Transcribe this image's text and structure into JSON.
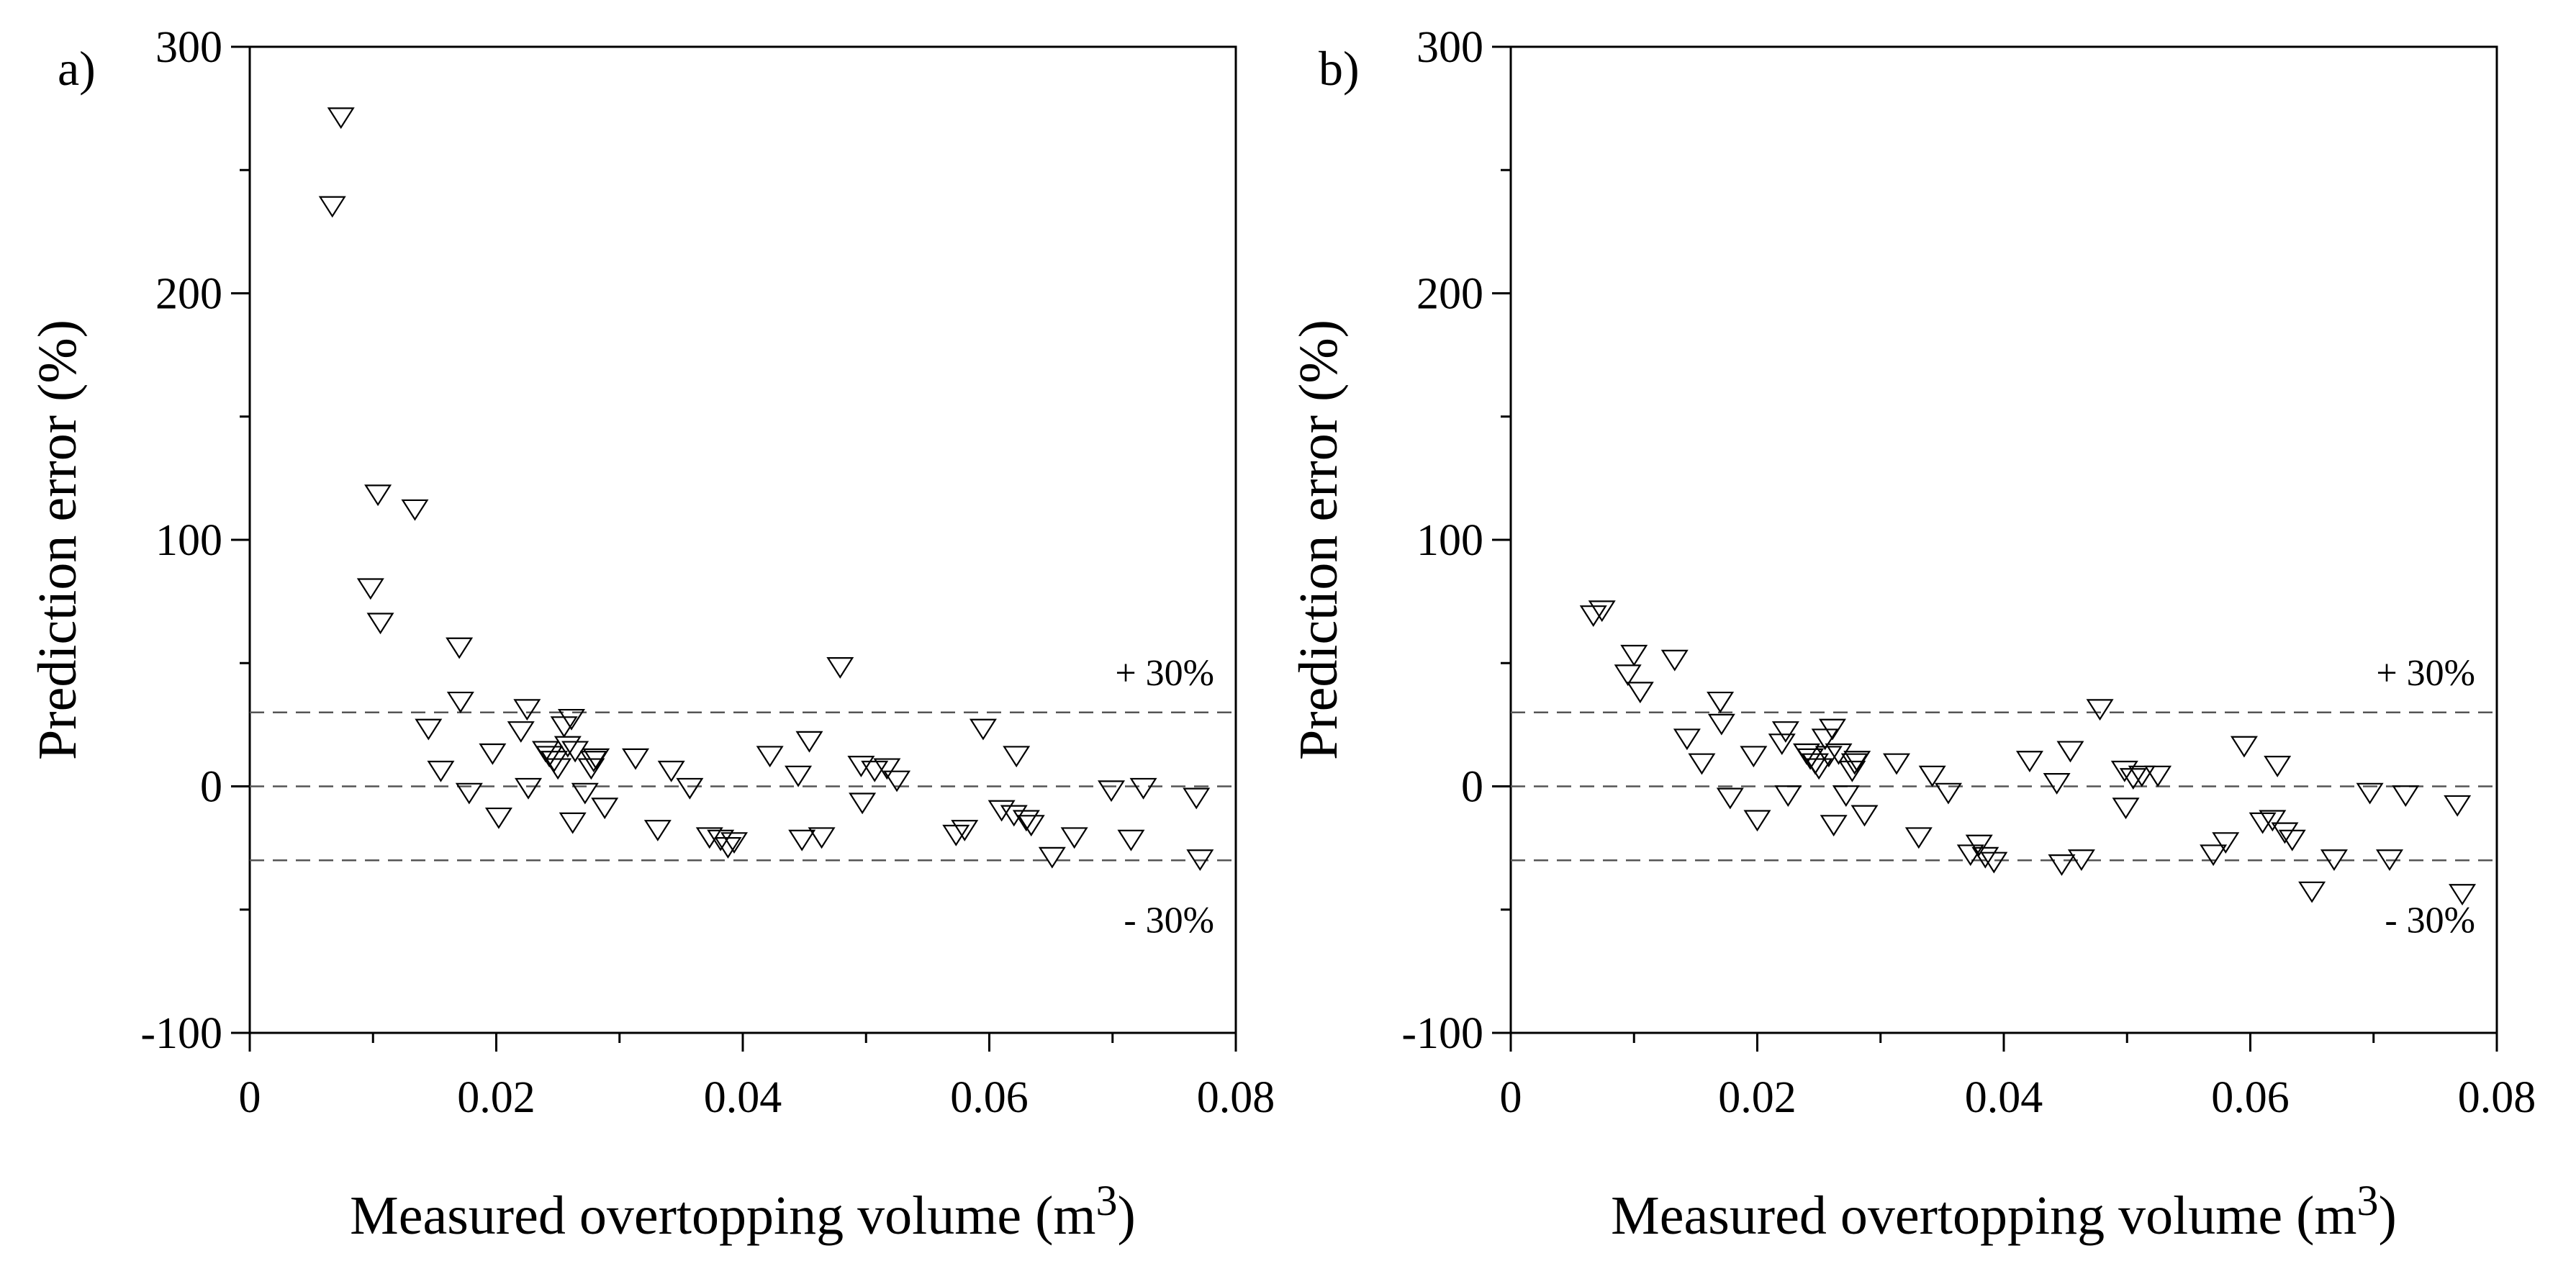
{
  "chart_data": [
    {
      "type": "scatter",
      "panel_label": "a)",
      "xlabel": "Measured overtopping volume (m",
      "xlabel_sup": "3",
      "xlabel_close": ")",
      "ylabel": "Prediction error (%)",
      "xlim": [
        0,
        0.08
      ],
      "ylim": [
        -100,
        300
      ],
      "xticks": [
        0,
        0.02,
        0.04,
        0.06,
        0.08
      ],
      "xtick_labels": [
        "0",
        "0.02",
        "0.04",
        "0.06",
        "0.08"
      ],
      "yticks": [
        -100,
        0,
        100,
        200,
        300
      ],
      "ytick_labels": [
        "-100",
        "0",
        "100",
        "200",
        "300"
      ],
      "reference_lines": [
        {
          "y": 30,
          "label": "+ 30%"
        },
        {
          "y": 0,
          "label": ""
        },
        {
          "y": -30,
          "label": "- 30%"
        }
      ],
      "marker": "triangle-down-open",
      "series": [
        {
          "name": "a",
          "points": [
            [
              0.0067,
              236
            ],
            [
              0.0074,
              272
            ],
            [
              0.0098,
              81
            ],
            [
              0.0104,
              119
            ],
            [
              0.0106,
              67
            ],
            [
              0.0134,
              113
            ],
            [
              0.0145,
              24
            ],
            [
              0.0155,
              7
            ],
            [
              0.017,
              57
            ],
            [
              0.0171,
              35
            ],
            [
              0.0178,
              -2
            ],
            [
              0.0197,
              14
            ],
            [
              0.0202,
              -12
            ],
            [
              0.022,
              23
            ],
            [
              0.0225,
              32
            ],
            [
              0.0226,
              0
            ],
            [
              0.024,
              15
            ],
            [
              0.0243,
              13
            ],
            [
              0.0247,
              11
            ],
            [
              0.025,
              8
            ],
            [
              0.0255,
              25
            ],
            [
              0.0258,
              17
            ],
            [
              0.0261,
              28
            ],
            [
              0.0262,
              -14
            ],
            [
              0.0264,
              15
            ],
            [
              0.0272,
              -2
            ],
            [
              0.0277,
              8
            ],
            [
              0.0279,
              11
            ],
            [
              0.0281,
              12
            ],
            [
              0.0288,
              -8
            ],
            [
              0.0313,
              12
            ],
            [
              0.0331,
              -17
            ],
            [
              0.0342,
              7
            ],
            [
              0.0357,
              0
            ],
            [
              0.0373,
              -20
            ],
            [
              0.0382,
              -21
            ],
            [
              0.0388,
              -24
            ],
            [
              0.0393,
              -22
            ],
            [
              0.0422,
              13
            ],
            [
              0.0445,
              5
            ],
            [
              0.0448,
              -21
            ],
            [
              0.0454,
              19
            ],
            [
              0.0464,
              -20
            ],
            [
              0.0479,
              49
            ],
            [
              0.0496,
              9
            ],
            [
              0.0497,
              -6
            ],
            [
              0.0507,
              7
            ],
            [
              0.0517,
              8
            ],
            [
              0.0525,
              3
            ],
            [
              0.0573,
              -19
            ],
            [
              0.058,
              -17
            ],
            [
              0.0595,
              24
            ],
            [
              0.061,
              -9
            ],
            [
              0.062,
              -11
            ],
            [
              0.0622,
              13
            ],
            [
              0.063,
              -13
            ],
            [
              0.0634,
              -15
            ],
            [
              0.0651,
              -28
            ],
            [
              0.0669,
              -20
            ],
            [
              0.0699,
              -1
            ],
            [
              0.0715,
              -21
            ],
            [
              0.0725,
              0
            ],
            [
              0.0768,
              -4
            ],
            [
              0.0771,
              -29
            ]
          ]
        }
      ]
    },
    {
      "type": "scatter",
      "panel_label": "b)",
      "xlabel": "Measured overtopping volume (m",
      "xlabel_sup": "3",
      "xlabel_close": ")",
      "ylabel": "Prediction error (%)",
      "xlim": [
        0,
        0.08
      ],
      "ylim": [
        -100,
        300
      ],
      "xticks": [
        0,
        0.02,
        0.04,
        0.06,
        0.08
      ],
      "xtick_labels": [
        "0",
        "0.02",
        "0.04",
        "0.06",
        "0.08"
      ],
      "yticks": [
        -100,
        0,
        100,
        200,
        300
      ],
      "ytick_labels": [
        "-100",
        "0",
        "100",
        "200",
        "300"
      ],
      "reference_lines": [
        {
          "y": 30,
          "label": "+ 30%"
        },
        {
          "y": 0,
          "label": ""
        },
        {
          "y": -30,
          "label": "- 30%"
        }
      ],
      "marker": "triangle-down-open",
      "series": [
        {
          "name": "b",
          "points": [
            [
              0.0067,
              70
            ],
            [
              0.0074,
              72
            ],
            [
              0.0095,
              46
            ],
            [
              0.01,
              54
            ],
            [
              0.0105,
              39
            ],
            [
              0.0133,
              52
            ],
            [
              0.0143,
              20
            ],
            [
              0.0155,
              10
            ],
            [
              0.017,
              35
            ],
            [
              0.0171,
              26
            ],
            [
              0.0178,
              -4
            ],
            [
              0.0197,
              13
            ],
            [
              0.02,
              -13
            ],
            [
              0.022,
              18
            ],
            [
              0.0223,
              23
            ],
            [
              0.0225,
              -3
            ],
            [
              0.024,
              14
            ],
            [
              0.0243,
              12
            ],
            [
              0.0247,
              10
            ],
            [
              0.025,
              8
            ],
            [
              0.0255,
              20
            ],
            [
              0.0258,
              13
            ],
            [
              0.0261,
              24
            ],
            [
              0.0262,
              -15
            ],
            [
              0.0266,
              14
            ],
            [
              0.0272,
              -3
            ],
            [
              0.0277,
              7
            ],
            [
              0.0279,
              10
            ],
            [
              0.0281,
              11
            ],
            [
              0.0287,
              -11
            ],
            [
              0.0313,
              10
            ],
            [
              0.0331,
              -20
            ],
            [
              0.0342,
              5
            ],
            [
              0.0355,
              -2
            ],
            [
              0.0373,
              -27
            ],
            [
              0.038,
              -23
            ],
            [
              0.0385,
              -28
            ],
            [
              0.0392,
              -30
            ],
            [
              0.0421,
              11
            ],
            [
              0.0443,
              2
            ],
            [
              0.0447,
              -31
            ],
            [
              0.0454,
              15
            ],
            [
              0.0463,
              -29
            ],
            [
              0.0478,
              32
            ],
            [
              0.0498,
              7
            ],
            [
              0.0499,
              -8
            ],
            [
              0.0505,
              4
            ],
            [
              0.0512,
              5
            ],
            [
              0.0525,
              5
            ],
            [
              0.057,
              -27
            ],
            [
              0.058,
              -22
            ],
            [
              0.0595,
              17
            ],
            [
              0.061,
              -14
            ],
            [
              0.0618,
              -13
            ],
            [
              0.0622,
              9
            ],
            [
              0.0628,
              -18
            ],
            [
              0.0634,
              -21
            ],
            [
              0.065,
              -42
            ],
            [
              0.0668,
              -29
            ],
            [
              0.0697,
              -2
            ],
            [
              0.0713,
              -29
            ],
            [
              0.0726,
              -3
            ],
            [
              0.0768,
              -7
            ],
            [
              0.0772,
              -43
            ]
          ]
        }
      ]
    }
  ]
}
